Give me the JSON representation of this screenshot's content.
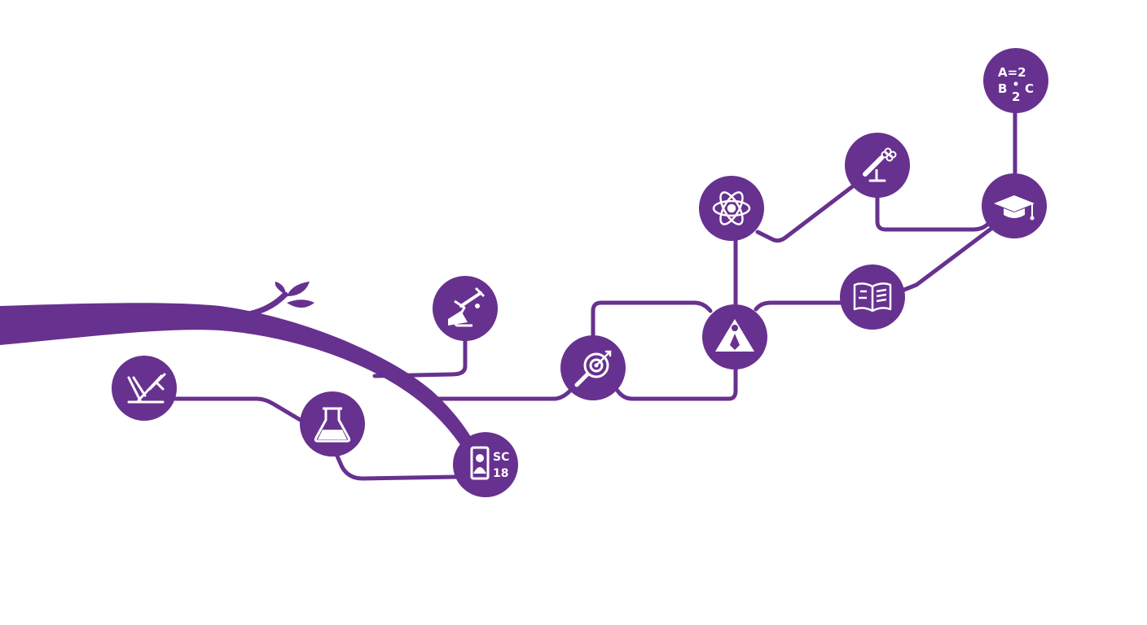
{
  "colors": {
    "accent": "#67318f",
    "icon_fg": "#ffffff",
    "background": "#ffffff"
  },
  "nodes": [
    {
      "id": "n1",
      "icon": "drafting-tools-icon"
    },
    {
      "id": "n2",
      "icon": "flask-icon"
    },
    {
      "id": "n3",
      "icon": "chemistry-experiment-icon"
    },
    {
      "id": "n4",
      "icon": "student-id-card-icon",
      "text_line1": "SC",
      "text_line2": "18"
    },
    {
      "id": "n5",
      "icon": "magnifier-target-icon"
    },
    {
      "id": "n6",
      "icon": "triangle-figure-icon"
    },
    {
      "id": "n7",
      "icon": "atom-icon"
    },
    {
      "id": "n8",
      "icon": "microscope-icon"
    },
    {
      "id": "n9",
      "icon": "open-book-icon"
    },
    {
      "id": "n10",
      "icon": "graduation-cap-icon"
    },
    {
      "id": "n11",
      "icon": "equation-icon",
      "text_line1": "A=2",
      "text_line2": "B",
      "text_line3": "2",
      "text_line4": "C"
    }
  ]
}
